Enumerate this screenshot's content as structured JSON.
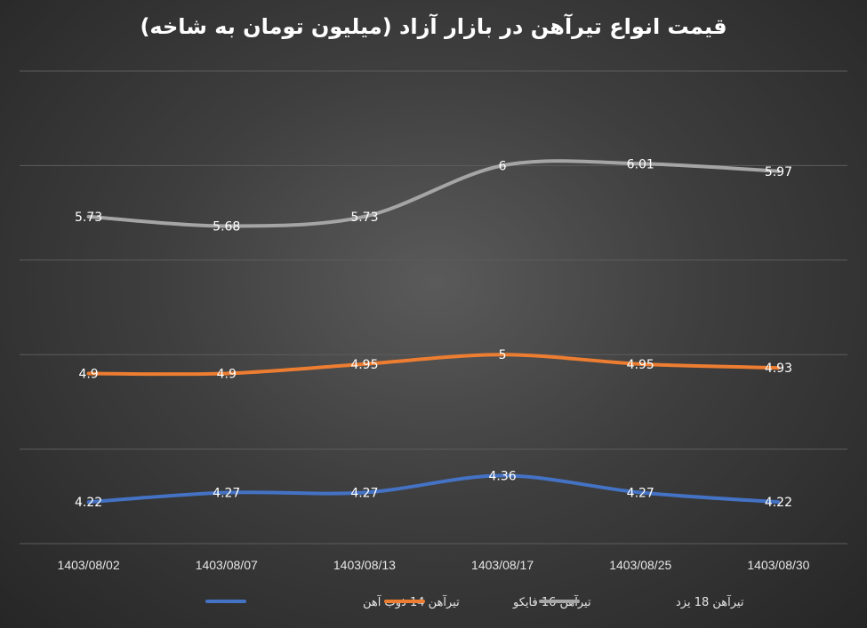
{
  "chart_data": {
    "type": "line",
    "title": "قیمت انواع تیرآهن در بازار آزاد (میلیون تومان به شاخه)",
    "categories": [
      "1403/08/02",
      "1403/08/07",
      "1403/08/13",
      "1403/08/17",
      "1403/08/25",
      "1403/08/30"
    ],
    "series": [
      {
        "name": "تیرآهن 14 ذوب آهن",
        "color": "#4472C4",
        "values": [
          4.22,
          4.27,
          4.27,
          4.36,
          4.27,
          4.22
        ]
      },
      {
        "name": "تیرآهن 16 فایکو",
        "color": "#ED7D31",
        "values": [
          4.9,
          4.9,
          4.95,
          5,
          4.95,
          4.93
        ]
      },
      {
        "name": "تیرآهن 18 یزد",
        "color": "#A5A5A5",
        "values": [
          5.73,
          5.68,
          5.73,
          6,
          6.01,
          5.97
        ]
      }
    ],
    "ylim": [
      4.0,
      6.5
    ],
    "grid": true,
    "legend_position": "bottom"
  }
}
